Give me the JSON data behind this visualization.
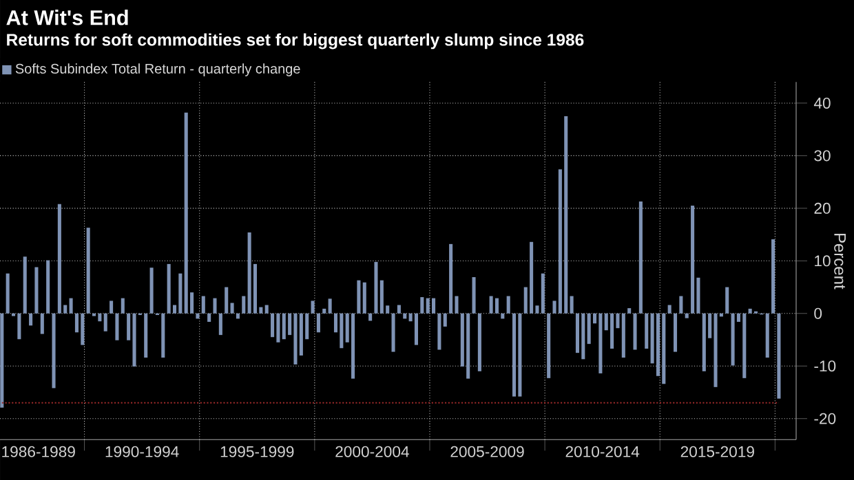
{
  "chart_data": {
    "type": "bar",
    "title": "At Wit's End",
    "subtitle": "Returns for soft commodities set for biggest quarterly slump since 1986",
    "ylabel": "Percent",
    "x": [
      "1986-06",
      "1986-09",
      "1986-12",
      "1987-03",
      "1987-06",
      "1987-09",
      "1987-12",
      "1988-03",
      "1988-06",
      "1988-09",
      "1988-12",
      "1989-03",
      "1989-06",
      "1989-09",
      "1989-12",
      "1990-03",
      "1990-06",
      "1990-09",
      "1990-12",
      "1991-03",
      "1991-06",
      "1991-09",
      "1991-12",
      "1992-03",
      "1992-06",
      "1992-09",
      "1992-12",
      "1993-03",
      "1993-06",
      "1993-09",
      "1993-12",
      "1994-03",
      "1994-06",
      "1994-09",
      "1994-12",
      "1995-03",
      "1995-06",
      "1995-09",
      "1995-12",
      "1996-03",
      "1996-06",
      "1996-09",
      "1996-12",
      "1997-03",
      "1997-06",
      "1997-09",
      "1997-12",
      "1998-03",
      "1998-06",
      "1998-09",
      "1998-12",
      "1999-03",
      "1999-06",
      "1999-09",
      "1999-12",
      "2000-03",
      "2000-06",
      "2000-09",
      "2000-12",
      "2001-03",
      "2001-06",
      "2001-09",
      "2001-12",
      "2002-03",
      "2002-06",
      "2002-09",
      "2002-12",
      "2003-03",
      "2003-06",
      "2003-09",
      "2003-12",
      "2004-03",
      "2004-06",
      "2004-09",
      "2004-12",
      "2005-03",
      "2005-06",
      "2005-09",
      "2005-12",
      "2006-03",
      "2006-06",
      "2006-09",
      "2006-12",
      "2007-03",
      "2007-06",
      "2007-09",
      "2007-12",
      "2008-03",
      "2008-06",
      "2008-09",
      "2008-12",
      "2009-03",
      "2009-06",
      "2009-09",
      "2009-12",
      "2010-03",
      "2010-06",
      "2010-09",
      "2010-12",
      "2011-03",
      "2011-06",
      "2011-09",
      "2011-12",
      "2012-03",
      "2012-06",
      "2012-09",
      "2012-12",
      "2013-03",
      "2013-06",
      "2013-09",
      "2013-12",
      "2014-03",
      "2014-06",
      "2014-09",
      "2014-12",
      "2015-03",
      "2015-06",
      "2015-09",
      "2015-12",
      "2016-03",
      "2016-06",
      "2016-09",
      "2016-12",
      "2017-03",
      "2017-06",
      "2017-09",
      "2017-12",
      "2018-03",
      "2018-06",
      "2018-09",
      "2018-12",
      "2019-03",
      "2019-06",
      "2019-09",
      "2019-12",
      "2020-03"
    ],
    "series": [
      {
        "name": "Softs Subindex Total Return - quarterly change",
        "color": "#7f93b5",
        "values": [
          -17.9,
          7.6,
          -0.5,
          -4.9,
          10.8,
          -2.3,
          8.8,
          -3.9,
          10.1,
          -14.2,
          20.8,
          1.6,
          2.9,
          -3.6,
          -6,
          16.3,
          -0.5,
          -1.5,
          -3.4,
          2.4,
          -5.1,
          2.9,
          -5.1,
          -10.1,
          -0.3,
          -8.4,
          8.7,
          -0.3,
          -8.4,
          9.4,
          1.6,
          7.6,
          38.2,
          4,
          -1,
          3.3,
          -1.6,
          2.9,
          -4.1,
          5,
          2,
          -1,
          3.3,
          15.4,
          9.4,
          1.2,
          1.6,
          -4.5,
          -5.5,
          -4.9,
          -4.1,
          -9.7,
          -8,
          -4.9,
          2.4,
          -3.6,
          0.9,
          2.8,
          -3.6,
          -6.6,
          -5.5,
          -12.4,
          6.3,
          5.9,
          -1.4,
          9.8,
          6.3,
          1.5,
          -7.3,
          1.6,
          -1,
          -1.5,
          -6,
          3.1,
          2.9,
          2.9,
          -6.9,
          -2.5,
          13.2,
          3.3,
          -10.1,
          -12.4,
          6.9,
          -11,
          0,
          3.3,
          2.9,
          -1,
          3.3,
          -15.8,
          -15.8,
          5,
          13.6,
          1.5,
          7.6,
          -12.3,
          2.4,
          27.4,
          37.5,
          3.3,
          -7.5,
          -8.7,
          -5.8,
          -1.9,
          -11.4,
          -3.2,
          -6.7,
          -2.8,
          -8.4,
          1,
          -6.9,
          21.3,
          -6.7,
          -9.5,
          -11.9,
          -13.4,
          1.6,
          -7.3,
          3.3,
          -0.9,
          20.5,
          6.8,
          -11,
          -4.7,
          -14,
          -0.6,
          5,
          -9.9,
          -1.6,
          -12.3,
          0.9,
          0.4,
          -0.2,
          -8.4,
          14.1,
          -16.2
        ]
      }
    ],
    "xlim": [
      "1986-05",
      "2020-12"
    ],
    "ylim": [
      -24,
      44
    ],
    "xticks": [
      {
        "value": "1988-01",
        "label": "1986-1989"
      },
      {
        "value": "1990-01",
        "label": null
      },
      {
        "value": "1992-07",
        "label": "1990-1994"
      },
      {
        "value": "1995-01",
        "label": null
      },
      {
        "value": "1997-07",
        "label": "1995-1999"
      },
      {
        "value": "2000-01",
        "label": null
      },
      {
        "value": "2002-07",
        "label": "2000-2004"
      },
      {
        "value": "2005-01",
        "label": null
      },
      {
        "value": "2007-07",
        "label": "2005-2009"
      },
      {
        "value": "2010-01",
        "label": null
      },
      {
        "value": "2012-07",
        "label": "2010-2014"
      },
      {
        "value": "2015-01",
        "label": null
      },
      {
        "value": "2017-07",
        "label": "2015-2019"
      },
      {
        "value": "2020-01",
        "label": null
      }
    ],
    "yticks": [
      -20,
      -10,
      0,
      10,
      20,
      30,
      40
    ],
    "ref_lines": [
      {
        "axis": "y",
        "value": -17,
        "color": "#9b2a2a",
        "line_style": "dotted"
      }
    ],
    "grid": true,
    "legend": "top left"
  }
}
